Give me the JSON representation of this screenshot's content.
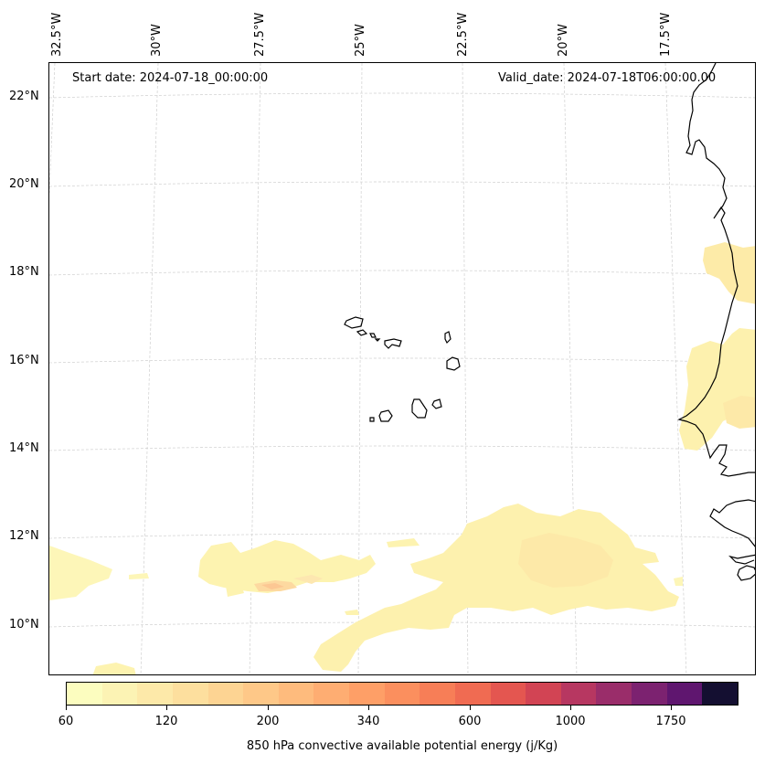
{
  "header": {
    "start_date": "Start date: 2024-07-18_00:00:00",
    "valid_date": "Valid_date: 2024-07-18T06:00:00.00"
  },
  "axes": {
    "longitude_labels": [
      "32.5°W",
      "30°W",
      "27.5°W",
      "25°W",
      "22.5°W",
      "20°W",
      "17.5°W"
    ],
    "latitude_labels": [
      "22°N",
      "20°N",
      "18°N",
      "16°N",
      "14°N",
      "12°N",
      "10°N"
    ]
  },
  "colorbar": {
    "title": "850 hPa convective available potential energy (j/Kg)",
    "tick_labels": [
      "60",
      "120",
      "200",
      "340",
      "600",
      "1000",
      "1750"
    ],
    "colors": [
      "#fcfdbf",
      "#fcf3b4",
      "#fde9a9",
      "#fddf9e",
      "#fdd493",
      "#fec888",
      "#febb7d",
      "#fead72",
      "#fe9f67",
      "#fb8f5e",
      "#f77e57",
      "#f06b52",
      "#e45650",
      "#d24454",
      "#b73761",
      "#9a2d6a",
      "#7c2270",
      "#5f166f",
      "#140f31"
    ]
  },
  "map": {
    "region": "Cape Verde and West African coast",
    "projection": "Lambert conformal"
  }
}
